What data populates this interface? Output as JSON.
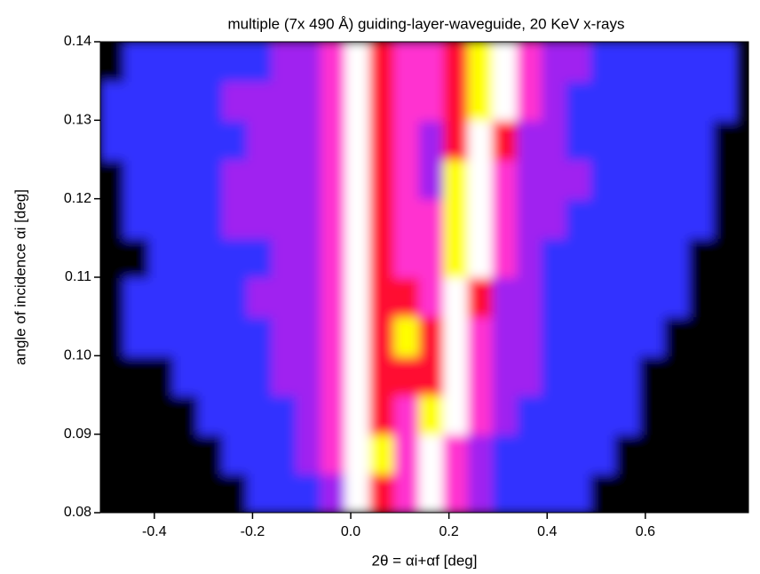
{
  "chart_data": {
    "type": "heatmap",
    "title": "multiple (7x 490 Å) guiding-layer-waveguide, 20 KeV x-rays",
    "x_label": "2θ = αi+αf [deg]",
    "y_label": "angle of incidence αi [deg]",
    "xlim": [
      -0.51,
      0.81
    ],
    "ylim": [
      0.08,
      0.14
    ],
    "xticks": [
      -0.4,
      -0.2,
      {
        "value": 0,
        "label": "0.0"
      },
      0.2,
      0.4,
      0.6
    ],
    "yticks": [
      0.08,
      0.09,
      {
        "value": 0.1,
        "label": "0.10"
      },
      0.11,
      0.12,
      0.13,
      0.14
    ],
    "colormap": [
      "#000000",
      "#3030ff",
      "#a020f0",
      "#ff30d0",
      "#ff1030",
      "#ffff00",
      "#ffffff"
    ],
    "x": [
      -0.485,
      -0.435,
      -0.385,
      -0.335,
      -0.285,
      -0.235,
      -0.185,
      -0.135,
      -0.085,
      -0.035,
      0.015,
      0.065,
      0.115,
      0.165,
      0.215,
      0.265,
      0.315,
      0.365,
      0.415,
      0.465,
      0.515,
      0.565,
      0.615,
      0.665,
      0.715,
      0.765
    ],
    "y": [
      0.0825,
      0.0875,
      0.0925,
      0.0975,
      0.1025,
      0.1075,
      0.1125,
      0.1175,
      0.1225,
      0.1275,
      0.1325,
      0.1375
    ],
    "z": [
      [
        0,
        0,
        0,
        0,
        0,
        0,
        1,
        1,
        1,
        2,
        6,
        4,
        3,
        6,
        3,
        2,
        1,
        1,
        1,
        1,
        0,
        0,
        0,
        0,
        0,
        0
      ],
      [
        0,
        0,
        0,
        0,
        0,
        1,
        1,
        1,
        2,
        3,
        6,
        5,
        3,
        6,
        3,
        2,
        1,
        1,
        1,
        1,
        1,
        0,
        0,
        0,
        0,
        0
      ],
      [
        0,
        0,
        0,
        0,
        1,
        1,
        1,
        1,
        2,
        3,
        6,
        4,
        3,
        5,
        6,
        3,
        2,
        1,
        1,
        1,
        1,
        1,
        0,
        0,
        0,
        0
      ],
      [
        0,
        0,
        0,
        1,
        1,
        1,
        1,
        2,
        2,
        3,
        6,
        4,
        4,
        4,
        6,
        3,
        2,
        2,
        1,
        1,
        1,
        1,
        0,
        0,
        0,
        0
      ],
      [
        0,
        1,
        1,
        1,
        1,
        1,
        1,
        2,
        2,
        3,
        6,
        4,
        5,
        4,
        6,
        3,
        2,
        2,
        1,
        1,
        1,
        1,
        1,
        0,
        0,
        0
      ],
      [
        0,
        1,
        1,
        1,
        1,
        1,
        2,
        2,
        2,
        3,
        6,
        4,
        4,
        3,
        6,
        4,
        2,
        2,
        1,
        1,
        1,
        1,
        1,
        1,
        0,
        0
      ],
      [
        0,
        0,
        1,
        1,
        1,
        1,
        1,
        2,
        2,
        3,
        6,
        4,
        3,
        3,
        5,
        6,
        3,
        2,
        1,
        1,
        1,
        1,
        1,
        1,
        0,
        0
      ],
      [
        0,
        1,
        1,
        1,
        1,
        2,
        2,
        2,
        2,
        3,
        6,
        4,
        3,
        3,
        5,
        6,
        3,
        2,
        2,
        1,
        1,
        1,
        1,
        1,
        1,
        0
      ],
      [
        0,
        1,
        1,
        1,
        1,
        2,
        2,
        2,
        2,
        3,
        6,
        4,
        3,
        2,
        5,
        6,
        3,
        2,
        2,
        2,
        1,
        1,
        1,
        1,
        1,
        0
      ],
      [
        1,
        1,
        1,
        1,
        1,
        1,
        2,
        2,
        2,
        3,
        6,
        4,
        3,
        2,
        4,
        6,
        4,
        2,
        2,
        1,
        1,
        1,
        1,
        1,
        1,
        0
      ],
      [
        1,
        1,
        1,
        1,
        1,
        2,
        2,
        2,
        2,
        3,
        6,
        4,
        3,
        3,
        4,
        5,
        6,
        3,
        2,
        1,
        1,
        1,
        1,
        1,
        1,
        1
      ],
      [
        0,
        1,
        1,
        1,
        1,
        1,
        1,
        2,
        2,
        3,
        6,
        4,
        3,
        3,
        4,
        5,
        6,
        3,
        2,
        2,
        1,
        1,
        1,
        1,
        1,
        1
      ]
    ]
  }
}
